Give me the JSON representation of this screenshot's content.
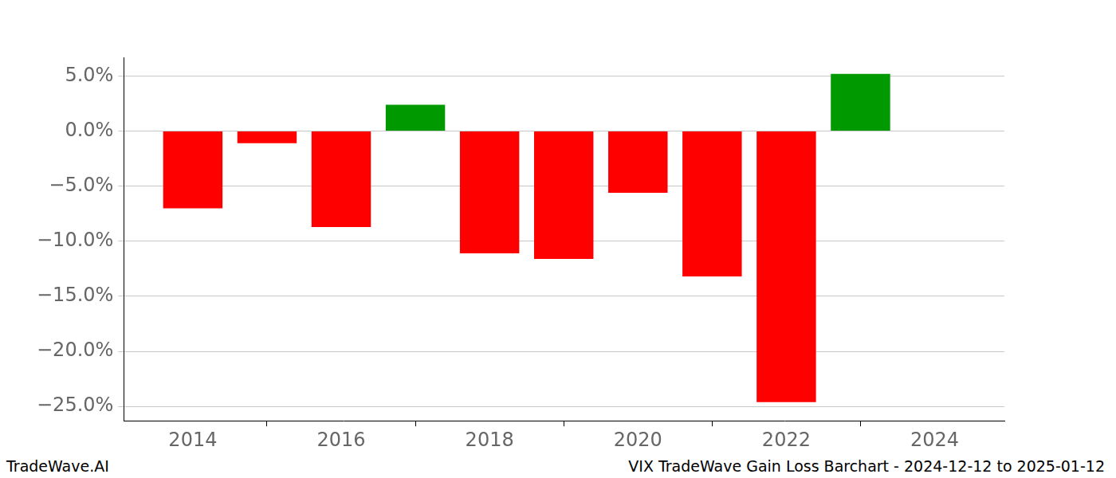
{
  "chart_data": {
    "type": "bar",
    "title": "VIX TradeWave Gain Loss Barchart - 2024-12-12 to 2025-01-12",
    "annotations": [
      "TradeWave.AI"
    ],
    "x": [
      2014,
      2015,
      2016,
      2017,
      2018,
      2019,
      2020,
      2021,
      2022,
      2023
    ],
    "values": [
      -7.0,
      -1.1,
      -8.7,
      2.4,
      -11.1,
      -11.6,
      -5.6,
      -13.2,
      -24.6,
      5.2
    ],
    "colors": [
      "#ff0000",
      "#ff0000",
      "#ff0000",
      "#009900",
      "#ff0000",
      "#ff0000",
      "#ff0000",
      "#ff0000",
      "#ff0000",
      "#009900"
    ],
    "xlim": [
      2013.07,
      2024.94
    ],
    "xticks": [
      2014,
      2016,
      2018,
      2020,
      2022,
      2024
    ],
    "ylim": [
      -26.3,
      6.7
    ],
    "yticks": [
      {
        "value": -25,
        "label": "−25.0%"
      },
      {
        "value": -20,
        "label": "−20.0%"
      },
      {
        "value": -15,
        "label": "−15.0%"
      },
      {
        "value": -10,
        "label": "−10.0%"
      },
      {
        "value": -5,
        "label": "−5.0%"
      },
      {
        "value": 0,
        "label": "0.0%"
      },
      {
        "value": 5,
        "label": "5.0%"
      }
    ],
    "grid": true
  }
}
